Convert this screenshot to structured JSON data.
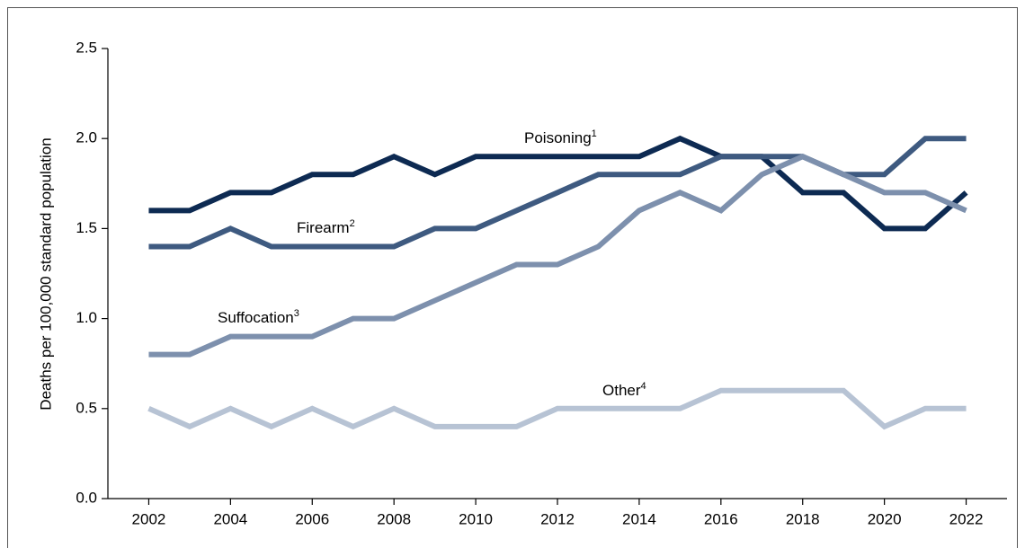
{
  "chart_data": {
    "type": "line",
    "y_label": "Deaths per 100,000 standard population",
    "x": [
      2002,
      2003,
      2004,
      2005,
      2006,
      2007,
      2008,
      2009,
      2010,
      2011,
      2012,
      2013,
      2014,
      2015,
      2016,
      2017,
      2018,
      2019,
      2020,
      2021,
      2022
    ],
    "series": [
      {
        "name": "Poisoning",
        "footnote": "1",
        "color": "#0d2a52",
        "values": [
          1.6,
          1.6,
          1.7,
          1.7,
          1.8,
          1.8,
          1.9,
          1.8,
          1.9,
          1.9,
          1.9,
          1.9,
          1.9,
          2.0,
          1.9,
          1.9,
          1.7,
          1.7,
          1.5,
          1.5,
          1.7
        ]
      },
      {
        "name": "Firearm",
        "footnote": "2",
        "color": "#3e5a80",
        "values": [
          1.4,
          1.4,
          1.5,
          1.4,
          1.4,
          1.4,
          1.4,
          1.5,
          1.5,
          1.6,
          1.7,
          1.8,
          1.8,
          1.8,
          1.9,
          1.9,
          1.9,
          1.8,
          1.8,
          2.0,
          2.0
        ]
      },
      {
        "name": "Suffocation",
        "footnote": "3",
        "color": "#7d90ad",
        "values": [
          0.8,
          0.8,
          0.9,
          0.9,
          0.9,
          1.0,
          1.0,
          1.1,
          1.2,
          1.3,
          1.3,
          1.4,
          1.6,
          1.7,
          1.6,
          1.8,
          1.9,
          1.8,
          1.7,
          1.7,
          1.6
        ]
      },
      {
        "name": "Other",
        "footnote": "4",
        "color": "#b7c3d4",
        "values": [
          0.5,
          0.4,
          0.5,
          0.4,
          0.5,
          0.4,
          0.5,
          0.4,
          0.4,
          0.4,
          0.5,
          0.5,
          0.5,
          0.5,
          0.6,
          0.6,
          0.6,
          0.6,
          0.4,
          0.5,
          0.5
        ]
      }
    ],
    "xlim": [
      2001,
      2023
    ],
    "xticks": [
      2002,
      2004,
      2006,
      2008,
      2010,
      2012,
      2014,
      2016,
      2018,
      2020,
      2022
    ],
    "ylim": [
      0,
      2.5
    ],
    "yticks": [
      {
        "value": 0,
        "label": "0.0"
      },
      0.5,
      {
        "value": 1,
        "label": "1.0"
      },
      1.5,
      {
        "value": 2,
        "label": "2.0"
      },
      2.5
    ]
  }
}
